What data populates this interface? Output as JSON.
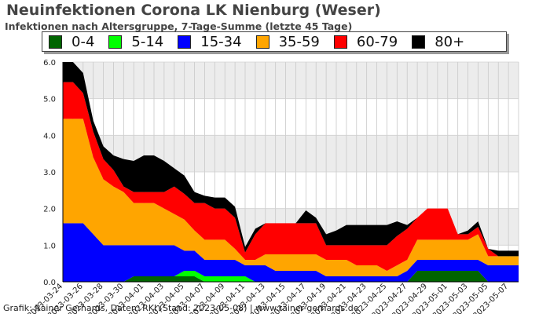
{
  "chart_data": {
    "type": "area",
    "stacked": true,
    "title": "Neuinfektionen Corona LK Nienburg (Weser)",
    "subtitle": "Infektionen nach Altersgruppe, 7-Tage-Summe (letzte 45 Tage)",
    "ylim": [
      0,
      6
    ],
    "yticks": [
      "0.0",
      "1.0",
      "2.0",
      "3.0",
      "4.0",
      "5.0",
      "6.0"
    ],
    "grid": true,
    "legend_position": "top",
    "x_tick_labels": [
      "2023-03-24",
      "2023-03-26",
      "2023-03-28",
      "2023-03-30",
      "2023-04-01",
      "2023-04-03",
      "2023-04-05",
      "2023-04-07",
      "2023-04-09",
      "2023-04-11",
      "2023-04-13",
      "2023-04-15",
      "2023-04-17",
      "2023-04-19",
      "2023-04-21",
      "2023-04-23",
      "2023-04-25",
      "2023-04-27",
      "2023-04-29",
      "2023-05-01",
      "2023-05-03",
      "2023-05-05",
      "2023-05-07"
    ],
    "x": [
      "2023-03-24",
      "2023-03-25",
      "2023-03-26",
      "2023-03-27",
      "2023-03-28",
      "2023-03-29",
      "2023-03-30",
      "2023-03-31",
      "2023-04-01",
      "2023-04-02",
      "2023-04-03",
      "2023-04-04",
      "2023-04-05",
      "2023-04-06",
      "2023-04-07",
      "2023-04-08",
      "2023-04-09",
      "2023-04-10",
      "2023-04-11",
      "2023-04-12",
      "2023-04-13",
      "2023-04-14",
      "2023-04-15",
      "2023-04-16",
      "2023-04-17",
      "2023-04-18",
      "2023-04-19",
      "2023-04-20",
      "2023-04-21",
      "2023-04-22",
      "2023-04-23",
      "2023-04-24",
      "2023-04-25",
      "2023-04-26",
      "2023-04-27",
      "2023-04-28",
      "2023-04-29",
      "2023-04-30",
      "2023-05-01",
      "2023-05-02",
      "2023-05-03",
      "2023-05-04",
      "2023-05-05",
      "2023-05-06",
      "2023-05-07",
      "2023-05-08"
    ],
    "series": [
      {
        "name": "0-4",
        "color": "#006400",
        "values": [
          0,
          0,
          0,
          0,
          0,
          0,
          0,
          0.15,
          0.15,
          0.15,
          0.15,
          0.15,
          0.15,
          0.15,
          0,
          0,
          0,
          0,
          0,
          0,
          0,
          0,
          0,
          0,
          0,
          0,
          0,
          0,
          0,
          0,
          0,
          0,
          0,
          0,
          0,
          0.3,
          0.3,
          0.3,
          0.3,
          0.3,
          0.3,
          0.3,
          0,
          0,
          0,
          0
        ]
      },
      {
        "name": "5-14",
        "color": "#00ff00",
        "values": [
          0,
          0,
          0,
          0,
          0,
          0,
          0,
          0,
          0,
          0,
          0,
          0,
          0.15,
          0.15,
          0.15,
          0.15,
          0.15,
          0.15,
          0.15,
          0,
          0,
          0,
          0,
          0,
          0,
          0,
          0,
          0,
          0,
          0,
          0,
          0,
          0,
          0,
          0,
          0,
          0,
          0,
          0,
          0,
          0,
          0,
          0,
          0,
          0,
          0
        ]
      },
      {
        "name": "15-34",
        "color": "#0000ff",
        "values": [
          1.6,
          1.6,
          1.6,
          1.3,
          1.0,
          1.0,
          1.0,
          0.85,
          0.85,
          0.85,
          0.85,
          0.85,
          0.55,
          0.55,
          0.45,
          0.45,
          0.45,
          0.45,
          0.3,
          0.45,
          0.45,
          0.3,
          0.3,
          0.3,
          0.3,
          0.3,
          0.15,
          0.15,
          0.15,
          0.15,
          0.15,
          0.15,
          0.15,
          0.15,
          0.3,
          0.3,
          0.3,
          0.3,
          0.3,
          0.3,
          0.3,
          0.3,
          0.45,
          0.45,
          0.45,
          0.45
        ]
      },
      {
        "name": "35-59",
        "color": "#ffa500",
        "values": [
          2.85,
          2.85,
          2.85,
          2.1,
          1.8,
          1.6,
          1.45,
          1.15,
          1.15,
          1.15,
          1.0,
          0.85,
          0.85,
          0.55,
          0.55,
          0.55,
          0.55,
          0.3,
          0.15,
          0.15,
          0.3,
          0.45,
          0.45,
          0.45,
          0.45,
          0.45,
          0.45,
          0.45,
          0.45,
          0.3,
          0.3,
          0.3,
          0.15,
          0.3,
          0.3,
          0.55,
          0.55,
          0.55,
          0.55,
          0.55,
          0.55,
          0.7,
          0.25,
          0.25,
          0.25,
          0.25
        ]
      },
      {
        "name": "60-79",
        "color": "#ff0000",
        "values": [
          1.0,
          1.0,
          0.7,
          0.7,
          0.55,
          0.45,
          0.15,
          0.3,
          0.3,
          0.3,
          0.45,
          0.75,
          0.7,
          0.75,
          1.0,
          0.85,
          0.85,
          0.85,
          0.2,
          0.7,
          0.85,
          0.85,
          0.85,
          0.85,
          0.85,
          0.85,
          0.4,
          0.4,
          0.4,
          0.55,
          0.55,
          0.55,
          0.7,
          0.8,
          0.85,
          0.6,
          0.85,
          0.85,
          0.85,
          0.15,
          0.15,
          0.2,
          0.2,
          0,
          0,
          0
        ]
      },
      {
        "name": "80+",
        "color": "#000000",
        "values": [
          0.55,
          0.55,
          0.55,
          0.3,
          0.35,
          0.4,
          0.75,
          0.85,
          1.0,
          1.0,
          0.85,
          0.5,
          0.5,
          0.3,
          0.2,
          0.3,
          0.3,
          0.3,
          0.15,
          0.15,
          0,
          0,
          0,
          0,
          0.35,
          0.15,
          0.3,
          0.4,
          0.55,
          0.55,
          0.55,
          0.55,
          0.55,
          0.4,
          0.1,
          0,
          0,
          0,
          0,
          0,
          0.1,
          0.15,
          0,
          0.15,
          0.15,
          0.15
        ]
      }
    ]
  },
  "credit": "Grafik: Rainer Gerhards, Daten: RKI (Stand: 2023-05-08) | www.rainer-gerhards.de"
}
